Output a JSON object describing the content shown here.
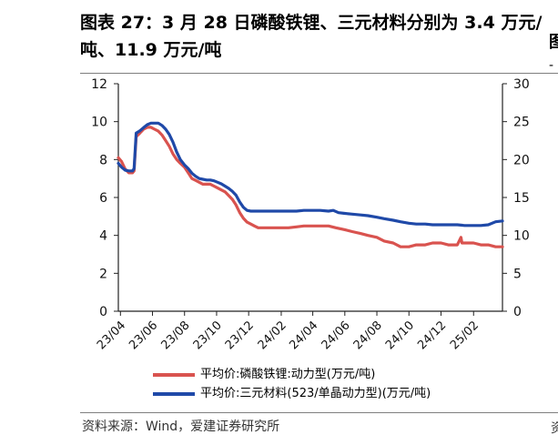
{
  "title": "图表 27：3 月 28 日磷酸铁锂、三元材料分别为 3.4 万元/吨、11.9 万元/吨",
  "source": "资料来源：Wind，爱建证券研究所",
  "right_edge_glyph": "图",
  "right_edge_glyph_2": "-",
  "right_edge_glyph_3": "资",
  "chart_data": {
    "type": "line",
    "x_tick_labels": [
      "23/04",
      "23/06",
      "23/08",
      "23/10",
      "23/12",
      "24/02",
      "24/04",
      "24/06",
      "24/08",
      "24/10",
      "24/12",
      "25/02"
    ],
    "y_left": {
      "ticks": [
        0,
        2,
        4,
        6,
        8,
        10,
        12
      ],
      "ylim": [
        0,
        12
      ]
    },
    "y_right": {
      "ticks": [
        0,
        5,
        10,
        15,
        20,
        25,
        30
      ],
      "ylim": [
        0,
        30
      ]
    },
    "legend_position": "bottom",
    "series": [
      {
        "name": "平均价:磷酸铁锂:动力型(万元/吨)",
        "axis": "left",
        "color": "#d9534f",
        "points": [
          [
            "2023-03-28",
            8.1
          ],
          [
            "2023-04-03",
            7.9
          ],
          [
            "2023-04-10",
            7.5
          ],
          [
            "2023-04-17",
            7.3
          ],
          [
            "2023-04-24",
            7.3
          ],
          [
            "2023-04-27",
            7.4
          ],
          [
            "2023-05-01",
            9.2
          ],
          [
            "2023-05-08",
            9.4
          ],
          [
            "2023-05-15",
            9.6
          ],
          [
            "2023-05-22",
            9.7
          ],
          [
            "2023-05-29",
            9.7
          ],
          [
            "2023-06-05",
            9.6
          ],
          [
            "2023-06-12",
            9.5
          ],
          [
            "2023-06-19",
            9.3
          ],
          [
            "2023-06-26",
            9.0
          ],
          [
            "2023-07-03",
            8.7
          ],
          [
            "2023-07-10",
            8.3
          ],
          [
            "2023-07-17",
            8.0
          ],
          [
            "2023-07-24",
            7.8
          ],
          [
            "2023-08-01",
            7.6
          ],
          [
            "2023-08-08",
            7.3
          ],
          [
            "2023-08-15",
            7.0
          ],
          [
            "2023-08-22",
            6.9
          ],
          [
            "2023-08-29",
            6.8
          ],
          [
            "2023-09-05",
            6.7
          ],
          [
            "2023-09-12",
            6.7
          ],
          [
            "2023-09-19",
            6.7
          ],
          [
            "2023-09-26",
            6.6
          ],
          [
            "2023-10-03",
            6.5
          ],
          [
            "2023-10-10",
            6.4
          ],
          [
            "2023-10-17",
            6.3
          ],
          [
            "2023-10-24",
            6.1
          ],
          [
            "2023-10-31",
            5.9
          ],
          [
            "2023-11-07",
            5.6
          ],
          [
            "2023-11-14",
            5.2
          ],
          [
            "2023-11-21",
            4.9
          ],
          [
            "2023-11-28",
            4.7
          ],
          [
            "2023-12-05",
            4.6
          ],
          [
            "2023-12-12",
            4.5
          ],
          [
            "2023-12-19",
            4.4
          ],
          [
            "2024-01-01",
            4.4
          ],
          [
            "2024-01-15",
            4.4
          ],
          [
            "2024-02-01",
            4.4
          ],
          [
            "2024-02-15",
            4.4
          ],
          [
            "2024-03-01",
            4.45
          ],
          [
            "2024-03-15",
            4.5
          ],
          [
            "2024-04-01",
            4.5
          ],
          [
            "2024-04-15",
            4.5
          ],
          [
            "2024-05-01",
            4.5
          ],
          [
            "2024-05-15",
            4.4
          ],
          [
            "2024-06-01",
            4.3
          ],
          [
            "2024-06-15",
            4.2
          ],
          [
            "2024-07-01",
            4.1
          ],
          [
            "2024-07-15",
            4.0
          ],
          [
            "2024-08-01",
            3.9
          ],
          [
            "2024-08-15",
            3.7
          ],
          [
            "2024-09-01",
            3.6
          ],
          [
            "2024-09-15",
            3.4
          ],
          [
            "2024-10-01",
            3.4
          ],
          [
            "2024-10-15",
            3.5
          ],
          [
            "2024-11-01",
            3.5
          ],
          [
            "2024-11-15",
            3.6
          ],
          [
            "2024-12-01",
            3.6
          ],
          [
            "2024-12-15",
            3.5
          ],
          [
            "2025-01-01",
            3.5
          ],
          [
            "2025-01-08",
            3.9
          ],
          [
            "2025-01-10",
            3.6
          ],
          [
            "2025-01-20",
            3.6
          ],
          [
            "2025-02-01",
            3.6
          ],
          [
            "2025-02-15",
            3.5
          ],
          [
            "2025-03-01",
            3.5
          ],
          [
            "2025-03-15",
            3.4
          ],
          [
            "2025-03-28",
            3.4
          ]
        ]
      },
      {
        "name": "平均价:三元材料(523/单晶动力型)(万元/吨)",
        "axis": "right",
        "color": "#1f49a8",
        "points": [
          [
            "2023-03-28",
            19.5
          ],
          [
            "2023-04-03",
            19.0
          ],
          [
            "2023-04-10",
            18.6
          ],
          [
            "2023-04-17",
            18.5
          ],
          [
            "2023-04-24",
            18.5
          ],
          [
            "2023-04-27",
            18.8
          ],
          [
            "2023-05-01",
            23.5
          ],
          [
            "2023-05-08",
            23.8
          ],
          [
            "2023-05-15",
            24.2
          ],
          [
            "2023-05-22",
            24.6
          ],
          [
            "2023-05-29",
            24.8
          ],
          [
            "2023-06-05",
            24.8
          ],
          [
            "2023-06-12",
            24.8
          ],
          [
            "2023-06-19",
            24.5
          ],
          [
            "2023-06-26",
            24.0
          ],
          [
            "2023-07-03",
            23.3
          ],
          [
            "2023-07-10",
            22.3
          ],
          [
            "2023-07-17",
            21.0
          ],
          [
            "2023-07-24",
            20.0
          ],
          [
            "2023-08-01",
            19.3
          ],
          [
            "2023-08-08",
            18.8
          ],
          [
            "2023-08-15",
            18.2
          ],
          [
            "2023-08-22",
            17.8
          ],
          [
            "2023-08-29",
            17.5
          ],
          [
            "2023-09-05",
            17.4
          ],
          [
            "2023-09-12",
            17.3
          ],
          [
            "2023-09-19",
            17.3
          ],
          [
            "2023-09-26",
            17.2
          ],
          [
            "2023-10-03",
            17.0
          ],
          [
            "2023-10-10",
            16.8
          ],
          [
            "2023-10-17",
            16.5
          ],
          [
            "2023-10-24",
            16.2
          ],
          [
            "2023-10-31",
            15.8
          ],
          [
            "2023-11-07",
            15.3
          ],
          [
            "2023-11-14",
            14.4
          ],
          [
            "2023-11-21",
            13.7
          ],
          [
            "2023-11-28",
            13.3
          ],
          [
            "2023-12-05",
            13.2
          ],
          [
            "2023-12-12",
            13.2
          ],
          [
            "2023-12-19",
            13.2
          ],
          [
            "2024-01-01",
            13.2
          ],
          [
            "2024-01-15",
            13.2
          ],
          [
            "2024-02-01",
            13.2
          ],
          [
            "2024-02-15",
            13.2
          ],
          [
            "2024-03-01",
            13.2
          ],
          [
            "2024-03-15",
            13.3
          ],
          [
            "2024-04-01",
            13.3
          ],
          [
            "2024-04-15",
            13.3
          ],
          [
            "2024-05-01",
            13.2
          ],
          [
            "2024-05-10",
            13.3
          ],
          [
            "2024-05-20",
            13.0
          ],
          [
            "2024-06-01",
            12.9
          ],
          [
            "2024-06-15",
            12.8
          ],
          [
            "2024-07-01",
            12.7
          ],
          [
            "2024-07-15",
            12.6
          ],
          [
            "2024-08-01",
            12.4
          ],
          [
            "2024-08-15",
            12.2
          ],
          [
            "2024-09-01",
            12.0
          ],
          [
            "2024-09-15",
            11.8
          ],
          [
            "2024-10-01",
            11.6
          ],
          [
            "2024-10-15",
            11.5
          ],
          [
            "2024-11-01",
            11.5
          ],
          [
            "2024-11-15",
            11.4
          ],
          [
            "2024-12-01",
            11.4
          ],
          [
            "2024-12-15",
            11.4
          ],
          [
            "2025-01-01",
            11.4
          ],
          [
            "2025-01-15",
            11.3
          ],
          [
            "2025-02-01",
            11.3
          ],
          [
            "2025-02-15",
            11.3
          ],
          [
            "2025-03-01",
            11.4
          ],
          [
            "2025-03-15",
            11.8
          ],
          [
            "2025-03-28",
            11.9
          ]
        ]
      }
    ]
  }
}
